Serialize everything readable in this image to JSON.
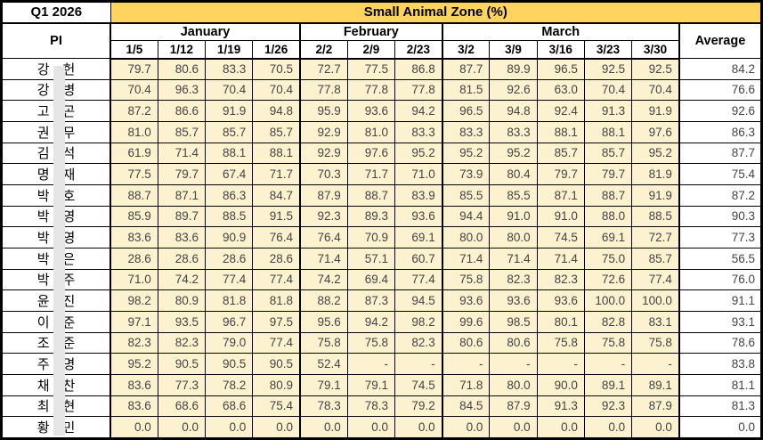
{
  "title_cell": "Q1 2026",
  "main_header": "Small Animal Zone (%)",
  "pi_label": "PI",
  "average_label": "Average",
  "months": [
    {
      "label": "January",
      "dates": [
        "1/5",
        "1/12",
        "1/19",
        "1/26"
      ]
    },
    {
      "label": "February",
      "dates": [
        "2/2",
        "2/9",
        "2/23"
      ]
    },
    {
      "label": "March",
      "dates": [
        "3/2",
        "3/9",
        "3/16",
        "3/23",
        "3/30"
      ]
    }
  ],
  "colors": {
    "header_gold": "#ffd45e",
    "data_cell_cream": "#fcf2cf",
    "redaction_gray": "#e6e6e6",
    "value_text": "#444444",
    "border_black": "#000000"
  },
  "rows": [
    {
      "name_first": "강",
      "name_last": "헌",
      "values": [
        "79.7",
        "80.6",
        "83.3",
        "70.5",
        "72.7",
        "77.5",
        "86.8",
        "87.7",
        "89.9",
        "96.5",
        "92.5",
        "92.5"
      ],
      "average": "84.2"
    },
    {
      "name_first": "강",
      "name_last": "병",
      "values": [
        "70.4",
        "96.3",
        "70.4",
        "70.4",
        "77.8",
        "77.8",
        "77.8",
        "81.5",
        "92.6",
        "63.0",
        "70.4",
        "70.4"
      ],
      "average": "76.6"
    },
    {
      "name_first": "고",
      "name_last": "곤",
      "values": [
        "87.2",
        "86.6",
        "91.9",
        "94.8",
        "95.9",
        "93.6",
        "94.2",
        "96.5",
        "94.8",
        "92.4",
        "91.3",
        "91.9"
      ],
      "average": "92.6"
    },
    {
      "name_first": "권",
      "name_last": "무",
      "values": [
        "81.0",
        "85.7",
        "85.7",
        "85.7",
        "92.9",
        "81.0",
        "83.3",
        "83.3",
        "83.3",
        "88.1",
        "88.1",
        "97.6"
      ],
      "average": "86.3"
    },
    {
      "name_first": "김",
      "name_last": "석",
      "values": [
        "61.9",
        "71.4",
        "88.1",
        "88.1",
        "92.9",
        "97.6",
        "95.2",
        "95.2",
        "95.2",
        "85.7",
        "85.7",
        "95.2"
      ],
      "average": "87.7"
    },
    {
      "name_first": "명",
      "name_last": "재",
      "values": [
        "77.5",
        "79.7",
        "67.4",
        "71.7",
        "70.3",
        "71.7",
        "71.0",
        "73.9",
        "80.4",
        "79.7",
        "79.7",
        "81.9"
      ],
      "average": "75.4"
    },
    {
      "name_first": "박",
      "name_last": "호",
      "values": [
        "88.7",
        "87.1",
        "86.3",
        "84.7",
        "87.9",
        "88.7",
        "83.9",
        "85.5",
        "85.5",
        "87.1",
        "88.7",
        "91.9"
      ],
      "average": "87.2"
    },
    {
      "name_first": "박",
      "name_last": "영",
      "values": [
        "85.9",
        "89.7",
        "88.5",
        "91.5",
        "92.3",
        "89.3",
        "93.6",
        "94.4",
        "91.0",
        "91.0",
        "88.0",
        "88.5"
      ],
      "average": "90.3"
    },
    {
      "name_first": "박",
      "name_last": "영",
      "values": [
        "83.6",
        "83.6",
        "90.9",
        "76.4",
        "76.4",
        "70.9",
        "69.1",
        "80.0",
        "80.0",
        "74.5",
        "69.1",
        "72.7"
      ],
      "average": "77.3"
    },
    {
      "name_first": "박",
      "name_last": "은",
      "values": [
        "28.6",
        "28.6",
        "28.6",
        "28.6",
        "71.4",
        "57.1",
        "60.7",
        "71.4",
        "71.4",
        "71.4",
        "75.0",
        "85.7"
      ],
      "average": "56.5"
    },
    {
      "name_first": "박",
      "name_last": "주",
      "values": [
        "71.0",
        "74.2",
        "77.4",
        "77.4",
        "74.2",
        "69.4",
        "77.4",
        "75.8",
        "82.3",
        "82.3",
        "72.6",
        "77.4"
      ],
      "average": "76.0"
    },
    {
      "name_first": "윤",
      "name_last": "진",
      "values": [
        "98.2",
        "80.9",
        "81.8",
        "81.8",
        "88.2",
        "87.3",
        "94.5",
        "93.6",
        "93.6",
        "93.6",
        "100.0",
        "100.0"
      ],
      "average": "91.1"
    },
    {
      "name_first": "이",
      "name_last": "준",
      "values": [
        "97.1",
        "93.5",
        "96.7",
        "97.5",
        "95.6",
        "94.2",
        "98.2",
        "99.6",
        "98.5",
        "80.1",
        "82.8",
        "83.1"
      ],
      "average": "93.1"
    },
    {
      "name_first": "조",
      "name_last": "준",
      "values": [
        "82.3",
        "82.3",
        "79.0",
        "77.4",
        "75.8",
        "75.8",
        "82.3",
        "80.6",
        "80.6",
        "75.8",
        "75.8",
        "75.8"
      ],
      "average": "78.6"
    },
    {
      "name_first": "주",
      "name_last": "명",
      "values": [
        "95.2",
        "90.5",
        "90.5",
        "90.5",
        "52.4",
        "-",
        "-",
        "-",
        "-",
        "-",
        "-",
        "-"
      ],
      "average": "83.8"
    },
    {
      "name_first": "채",
      "name_last": "찬",
      "values": [
        "83.6",
        "77.3",
        "78.2",
        "80.9",
        "79.1",
        "79.1",
        "74.5",
        "71.8",
        "80.0",
        "90.0",
        "89.1",
        "89.1"
      ],
      "average": "81.1"
    },
    {
      "name_first": "최",
      "name_last": "현",
      "values": [
        "83.6",
        "68.6",
        "68.6",
        "75.4",
        "78.3",
        "78.3",
        "79.2",
        "84.5",
        "87.9",
        "91.3",
        "92.3",
        "87.9"
      ],
      "average": "81.3"
    },
    {
      "name_first": "황",
      "name_last": "민",
      "values": [
        "0.0",
        "0.0",
        "0.0",
        "0.0",
        "0.0",
        "0.0",
        "0.0",
        "0.0",
        "0.0",
        "0.0",
        "0.0",
        "0.0"
      ],
      "average": "0.0"
    }
  ]
}
